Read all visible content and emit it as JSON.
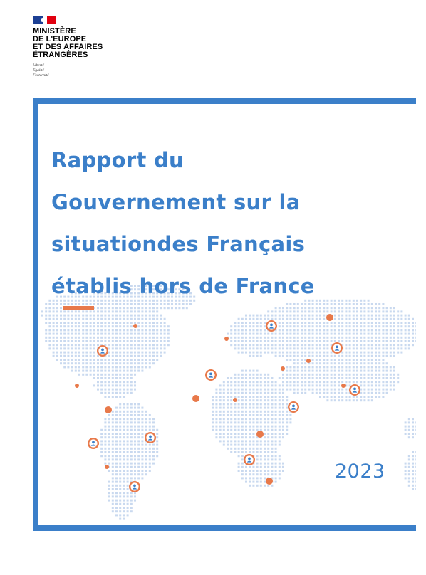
{
  "logo": {
    "ministry_lines": [
      "MINISTÈRE",
      "DE L'EUROPE",
      "ET DES AFFAIRES",
      "ÉTRANGÈRES"
    ],
    "motto_lines": [
      "Liberté",
      "Égalité",
      "Fraternité"
    ]
  },
  "cover": {
    "title_lines": [
      "Rapport du",
      "Gouvernement sur la",
      "situationdes Français",
      "établis hors de France"
    ],
    "year": "2023"
  },
  "colors": {
    "accent_blue": "#3b7fc9",
    "dot_blue": "#c9d9ef",
    "marker_orange": "#e8794a"
  },
  "icons": [
    "marianne-flag-icon",
    "person-marker-icon"
  ]
}
